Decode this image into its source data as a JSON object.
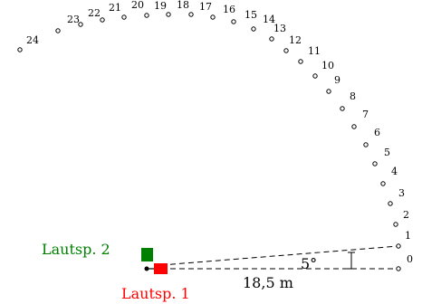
{
  "speakers": {
    "speaker1": {
      "label": "Lautsp. 1",
      "color": "#ff0000"
    },
    "speaker2": {
      "label": "Lautsp. 2",
      "color": "#008000"
    }
  },
  "points": [
    "0",
    "1",
    "2",
    "3",
    "4",
    "5",
    "6",
    "7",
    "8",
    "9",
    "10",
    "11",
    "12",
    "13",
    "14",
    "15",
    "16",
    "17",
    "18",
    "19",
    "20",
    "21",
    "22",
    "23",
    "24"
  ],
  "measurements": {
    "distance": "18,5 m",
    "angle": "5°"
  }
}
